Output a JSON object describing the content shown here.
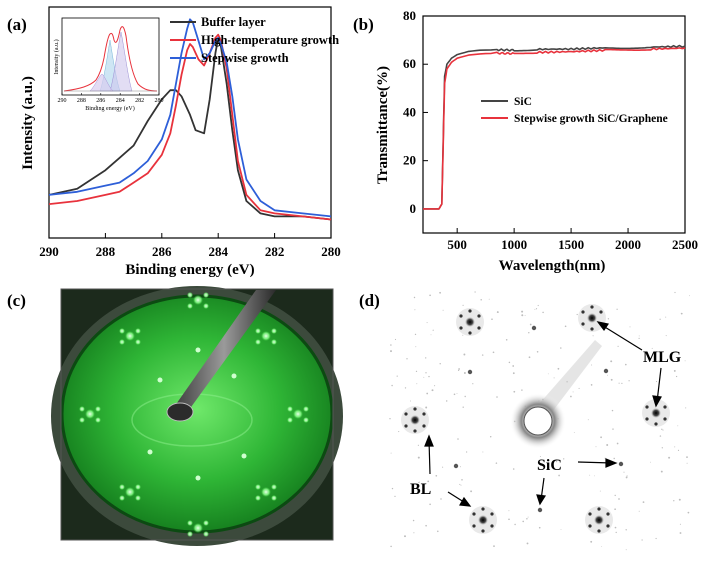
{
  "panels": {
    "a": "(a)",
    "b": "(b)",
    "c": "(c)",
    "d": "(d)"
  },
  "chart_data": [
    {
      "type": "line",
      "xlabel": "Binding energy (eV)",
      "ylabel": "Intensity (a.u.)",
      "xlim": [
        290,
        280
      ],
      "x_reversed": true,
      "xticks": [
        "290",
        "288",
        "286",
        "284",
        "282",
        "280"
      ],
      "legend_position": "top-right",
      "series": [
        {
          "name": "Buffer layer",
          "color": "#333333",
          "x": [
            290,
            289,
            288.5,
            288,
            287.5,
            287,
            286.5,
            286,
            285.7,
            285.5,
            285.3,
            285,
            284.8,
            284.5,
            284.3,
            284.1,
            284,
            283.9,
            283.7,
            283.5,
            283.3,
            283,
            282.5,
            282,
            281,
            280
          ],
          "y": [
            0.14,
            0.16,
            0.19,
            0.22,
            0.26,
            0.3,
            0.38,
            0.45,
            0.48,
            0.48,
            0.46,
            0.4,
            0.35,
            0.34,
            0.45,
            0.6,
            0.65,
            0.62,
            0.5,
            0.35,
            0.22,
            0.12,
            0.08,
            0.07,
            0.07,
            0.06
          ]
        },
        {
          "name": "High-temperature growth",
          "color": "#e8323c",
          "x": [
            290,
            289,
            288,
            287.5,
            287,
            286.5,
            286,
            285.7,
            285.5,
            285.3,
            285.1,
            285,
            284.9,
            284.7,
            284.5,
            284.3,
            284.1,
            284,
            283.9,
            283.7,
            283.5,
            283.3,
            283,
            282.5,
            282,
            281,
            280
          ],
          "y": [
            0.11,
            0.12,
            0.14,
            0.15,
            0.18,
            0.21,
            0.27,
            0.34,
            0.43,
            0.53,
            0.61,
            0.63,
            0.62,
            0.58,
            0.56,
            0.6,
            0.65,
            0.66,
            0.64,
            0.55,
            0.4,
            0.25,
            0.14,
            0.09,
            0.08,
            0.07,
            0.06
          ]
        },
        {
          "name": "Stepwise growth",
          "color": "#2e5fd8",
          "x": [
            290,
            289,
            288,
            287.5,
            287,
            286.5,
            286,
            285.7,
            285.5,
            285.3,
            285.1,
            285,
            284.9,
            284.7,
            284.5,
            284.3,
            284.1,
            284,
            283.9,
            283.7,
            283.5,
            283.3,
            283,
            282.5,
            282,
            281,
            280
          ],
          "y": [
            0.14,
            0.15,
            0.17,
            0.18,
            0.21,
            0.25,
            0.32,
            0.4,
            0.5,
            0.6,
            0.68,
            0.71,
            0.7,
            0.64,
            0.58,
            0.6,
            0.64,
            0.65,
            0.63,
            0.57,
            0.46,
            0.32,
            0.19,
            0.12,
            0.09,
            0.08,
            0.07
          ]
        }
      ],
      "inset": {
        "xlabel": "Binding energy (eV)",
        "ylabel": "Intensity (a.u.)",
        "xticks": [
          "290",
          "288",
          "286",
          "284",
          "282",
          "280"
        ]
      }
    },
    {
      "type": "line",
      "xlabel": "Wavelength(nm)",
      "ylabel": "Transmittance(%)",
      "xlim": [
        200,
        2500
      ],
      "ylim": [
        -10,
        80
      ],
      "xticks": [
        "500",
        "1000",
        "1500",
        "2000",
        "2500"
      ],
      "yticks": [
        "0",
        "20",
        "40",
        "60",
        "80"
      ],
      "legend_position": "center",
      "series": [
        {
          "name": "SiC",
          "color": "#444444",
          "x": [
            200,
            340,
            365,
            378,
            390,
            410,
            450,
            500,
            600,
            700,
            850,
            1000,
            1200,
            1500,
            1800,
            2000,
            2200,
            2500
          ],
          "y": [
            0,
            0,
            2,
            30,
            55,
            60,
            62.5,
            64,
            65.3,
            65.8,
            66,
            65.8,
            66.2,
            66.3,
            66.8,
            66.9,
            67.1,
            67.5
          ]
        },
        {
          "name": "Stepwise growth SiC/Graphene",
          "color": "#e8323c",
          "x": [
            200,
            340,
            365,
            378,
            390,
            410,
            450,
            500,
            600,
            700,
            850,
            1000,
            1200,
            1500,
            1800,
            2000,
            2200,
            2500
          ],
          "y": [
            0,
            0,
            2,
            28,
            52,
            58,
            60.8,
            62.5,
            63.8,
            64.3,
            64.6,
            64.4,
            64.9,
            65.2,
            65.8,
            66,
            66.3,
            66.7
          ]
        }
      ]
    }
  ],
  "leed_labels": {
    "mlg": "MLG",
    "sic": "SiC",
    "bl": "BL"
  },
  "colors": {
    "screen_green": "#32c83a",
    "frame_dark": "#1c2a1c"
  }
}
